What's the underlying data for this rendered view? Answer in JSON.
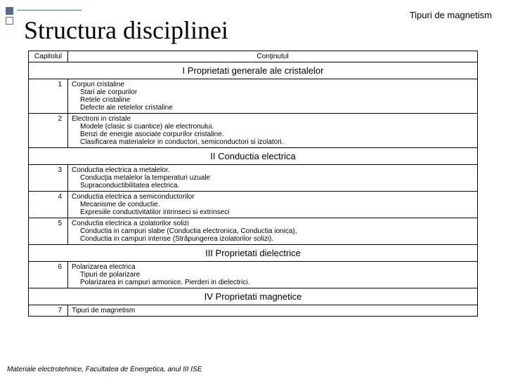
{
  "header_right": "Tipuri de magnetism",
  "title": "Structura disciplinei",
  "head": {
    "c1": "Capitolul",
    "c2": "Conţinutul"
  },
  "sections": {
    "s1": "I Proprietati generale ale cristalelor",
    "s2": "II Conductia electrica",
    "s3": "III Proprietati dielectrice",
    "s4": "IV Proprietati magnetice"
  },
  "rows": {
    "r1": {
      "n": "1",
      "t": "Corpuri cristaline",
      "l1": "Stari ale corpurilor",
      "l2": "Retele cristaline",
      "l3": "Defecte ale retelelor cristaline"
    },
    "r2": {
      "n": "2",
      "t": "Electroni in cristale",
      "l1": "Modele (clasic si cuantice) ale electronului.",
      "l2": "Benzi de energie asociate corpurilor cristaline.",
      "l3": "Clasificarea materialelor in conductori, semiconductori si izolatori."
    },
    "r3": {
      "n": "3",
      "t": "Conductia electrica a metalelor.",
      "l1": "Conducţia metalelor la temperaturi uzuale",
      "l2": "Supraconductibilitatea electrica."
    },
    "r4": {
      "n": "4",
      "t": "Conductia electrica a semiconductorilor",
      "l1": "Mecanisme de conductie.",
      "l2": "Expresiile conductivitatilor intrinseci si extrinseci"
    },
    "r5": {
      "n": "5",
      "t": "Conductia electrica a izolatorilor solizi",
      "l1": "Conductia in campuri slabe (Conductia electronica, Conductia ionica),",
      "l2": "Conductia in campuri intense (Străpungerea izolatorilor solizi)."
    },
    "r6": {
      "n": "6",
      "t": "Polarizarea electrica",
      "l1": "Tipuri de polarizare",
      "l2": "Polarizarea in campuri armonice. Pierderi in dielectrici."
    },
    "r7": {
      "n": "7",
      "t": "Tipuri de magnetism"
    }
  },
  "footer": "Materiale electrotehnice, Facultatea de Energetica, anul III ISE"
}
